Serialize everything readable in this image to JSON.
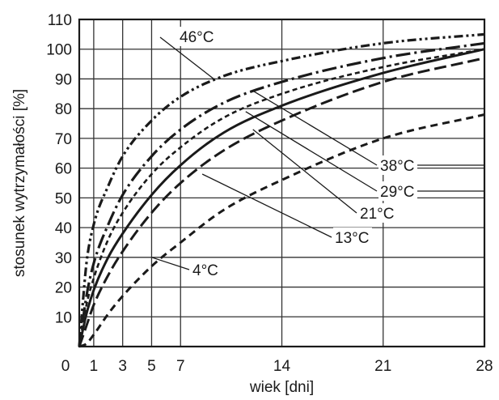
{
  "chart_data": {
    "type": "line",
    "xlabel": "wiek [dni]",
    "ylabel": "stosunek wytrzymałości [%]",
    "xlim": [
      0,
      28
    ],
    "ylim": [
      0,
      110
    ],
    "x_ticks": [
      0,
      1,
      3,
      5,
      7,
      14,
      21,
      28
    ],
    "y_ticks": [
      0,
      10,
      20,
      30,
      40,
      50,
      60,
      70,
      80,
      90,
      100,
      110
    ],
    "grid": true,
    "series": [
      {
        "name": "46°C",
        "dash": "dash-dot-dot",
        "x": [
          0.5,
          1,
          2,
          3,
          5,
          7,
          10,
          14,
          21,
          28
        ],
        "y": [
          28,
          41,
          54,
          64,
          76,
          84,
          91,
          96,
          102,
          105
        ]
      },
      {
        "name": "38°C",
        "dash": "long-dash-dot",
        "x": [
          0.5,
          1,
          2,
          3,
          5,
          7,
          10,
          14,
          21,
          28
        ],
        "y": [
          17,
          28,
          41,
          51,
          64,
          73,
          82,
          89,
          97,
          102
        ]
      },
      {
        "name": "29°C",
        "dash": "short-dash",
        "x": [
          0.5,
          1,
          2,
          3,
          5,
          7,
          10,
          14,
          21,
          28
        ],
        "y": [
          14,
          23,
          36,
          45,
          58,
          67,
          77,
          85,
          94,
          100
        ]
      },
      {
        "name": "21°C",
        "dash": "solid",
        "x": [
          0.5,
          1,
          2,
          3,
          5,
          7,
          10,
          14,
          21,
          28
        ],
        "y": [
          11,
          19,
          30,
          38,
          51,
          61,
          72,
          81,
          92,
          100
        ]
      },
      {
        "name": "13°C",
        "dash": "long-dash",
        "x": [
          0.5,
          1,
          2,
          3,
          5,
          7,
          10,
          14,
          21,
          28
        ],
        "y": [
          7,
          14,
          24,
          32,
          45,
          55,
          66,
          76,
          89,
          97
        ]
      },
      {
        "name": "4°C",
        "dash": "dash",
        "x": [
          0.5,
          1,
          2,
          3,
          5,
          7,
          10,
          14,
          21,
          28
        ],
        "y": [
          1,
          4,
          11,
          17,
          27,
          35,
          46,
          56,
          70,
          78
        ]
      }
    ],
    "annotations": [
      {
        "text": "46°C",
        "points_to": [
          9.3,
          90
        ]
      },
      {
        "text": "38°C",
        "points_to": [
          12,
          86
        ]
      },
      {
        "text": "29°C",
        "points_to": [
          11.5,
          79
        ]
      },
      {
        "text": "21°C",
        "points_to": [
          12,
          73
        ]
      },
      {
        "text": "13°C",
        "points_to": [
          8.5,
          58
        ]
      },
      {
        "text": "4°C",
        "points_to": [
          5,
          30
        ]
      }
    ]
  }
}
